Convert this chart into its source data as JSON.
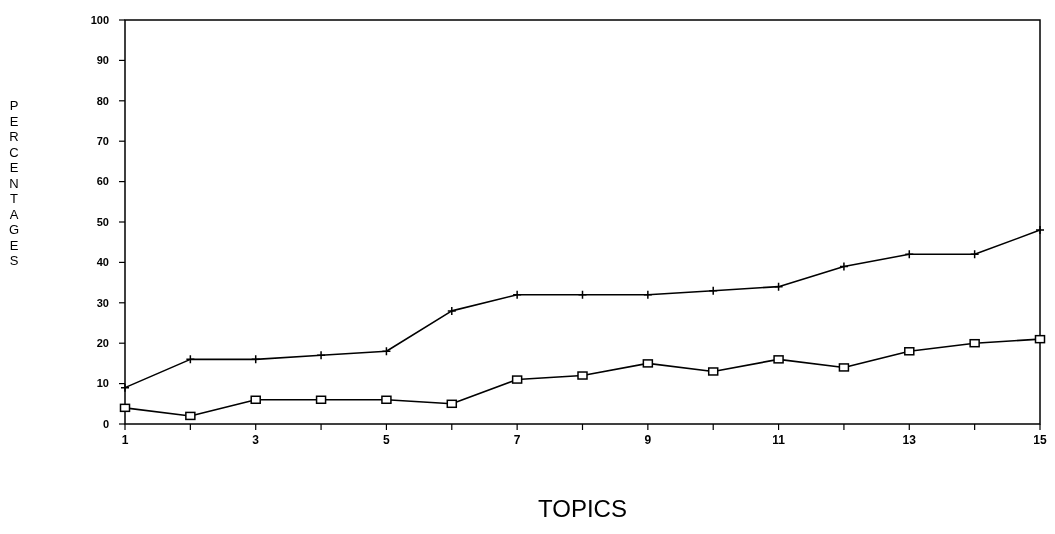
{
  "chart_data": {
    "type": "line",
    "xlabel": "TOPICS",
    "ylabel": "PERCENTAGES",
    "x": [
      1,
      2,
      3,
      4,
      5,
      6,
      7,
      8,
      9,
      10,
      11,
      12,
      13,
      14,
      15
    ],
    "series": [
      {
        "color": "#000000",
        "marker": "cross",
        "values": [
          9,
          16,
          16,
          17,
          18,
          28,
          32,
          32,
          32,
          33,
          34,
          39,
          42,
          42,
          48
        ]
      },
      {
        "color": "#000000",
        "marker": "square",
        "values": [
          4,
          2,
          6,
          6,
          6,
          5,
          11,
          12,
          15,
          13,
          16,
          14,
          18,
          20,
          21
        ]
      }
    ],
    "xlim": [
      1,
      15
    ],
    "xticks": [
      1,
      {
        "value": 2,
        "label": null
      },
      3,
      {
        "value": 4,
        "label": null
      },
      5,
      {
        "value": 6,
        "label": null
      },
      7,
      {
        "value": 8,
        "label": null
      },
      9,
      {
        "value": 10,
        "label": null
      },
      11,
      {
        "value": 12,
        "label": null
      },
      13,
      {
        "value": 14,
        "label": null
      },
      15
    ],
    "ylim": [
      0,
      100
    ],
    "yticks": [
      0,
      10,
      20,
      30,
      40,
      50,
      60,
      70,
      80,
      90,
      100
    ],
    "grid": false,
    "line_style": "solid"
  }
}
